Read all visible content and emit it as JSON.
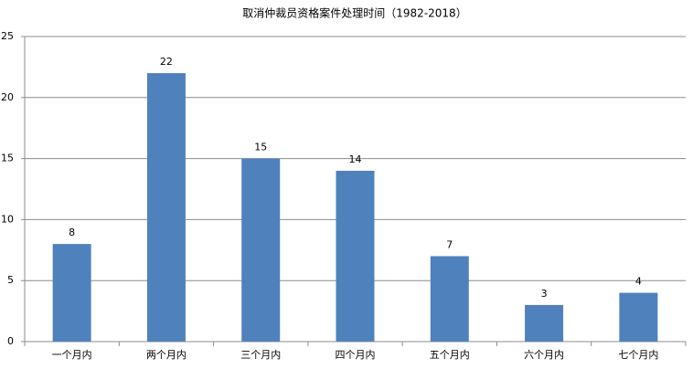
{
  "chart_data": {
    "type": "bar",
    "title": "取消仲裁员资格案件处理时间（1982-2018）",
    "categories": [
      "一个月内",
      "两个月内",
      "三个月内",
      "四个月内",
      "五个月内",
      "六个月内",
      "七个月内"
    ],
    "values": [
      8,
      22,
      15,
      14,
      7,
      3,
      4
    ],
    "color": "#4f81bd",
    "ylim": [
      0,
      25
    ],
    "yticks": [
      0,
      5,
      10,
      15,
      20,
      25
    ],
    "grid": true
  }
}
